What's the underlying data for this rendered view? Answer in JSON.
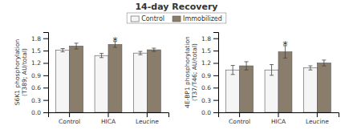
{
  "chart_data": [
    {
      "type": "bar",
      "title": "14-day Recovery",
      "categories": [
        "Control",
        "HICA",
        "Leucine"
      ],
      "series": [
        {
          "name": "Control",
          "color": "#f5f5f5",
          "values": [
            1.51,
            1.38,
            1.44
          ],
          "errors": [
            0.04,
            0.05,
            0.04
          ]
        },
        {
          "name": "Immobilized",
          "color": "#8b7d6b",
          "values": [
            1.61,
            1.65,
            1.52
          ],
          "errors": [
            0.07,
            0.07,
            0.04
          ]
        }
      ],
      "ylabel": "S6K1 phosphorylation\n(T389; AU/total)",
      "ylim": [
        0,
        1.95
      ],
      "yticks": [
        {
          "value": 0,
          "label": "0.0"
        },
        0.3,
        0.6,
        0.9,
        1.2,
        1.5,
        1.8
      ],
      "annotations": [
        {
          "text": "*",
          "category": "HICA",
          "series": "Immobilized",
          "y": 1.77
        }
      ],
      "legend": "top",
      "grid": false
    },
    {
      "type": "bar",
      "categories": [
        "Control",
        "HICA",
        "Leucine"
      ],
      "series": [
        {
          "name": "Control",
          "color": "#f5f5f5",
          "values": [
            1.03,
            1.03,
            1.08
          ],
          "errors": [
            0.11,
            0.13,
            0.05
          ]
        },
        {
          "name": "Immobilized",
          "color": "#8b7d6b",
          "values": [
            1.13,
            1.47,
            1.2
          ],
          "errors": [
            0.1,
            0.15,
            0.07
          ]
        }
      ],
      "ylabel": "4E-BP1 phosphorylation\n(T37/T46; AU/total)",
      "ylim": [
        0,
        1.95
      ],
      "yticks": [
        {
          "value": 0,
          "label": "0.0"
        },
        0.3,
        0.6,
        0.9,
        1.2,
        1.5,
        1.8
      ],
      "annotations": [
        {
          "text": "*",
          "category": "HICA",
          "series": "Immobilized",
          "y": 1.67
        }
      ],
      "grid": false
    }
  ]
}
